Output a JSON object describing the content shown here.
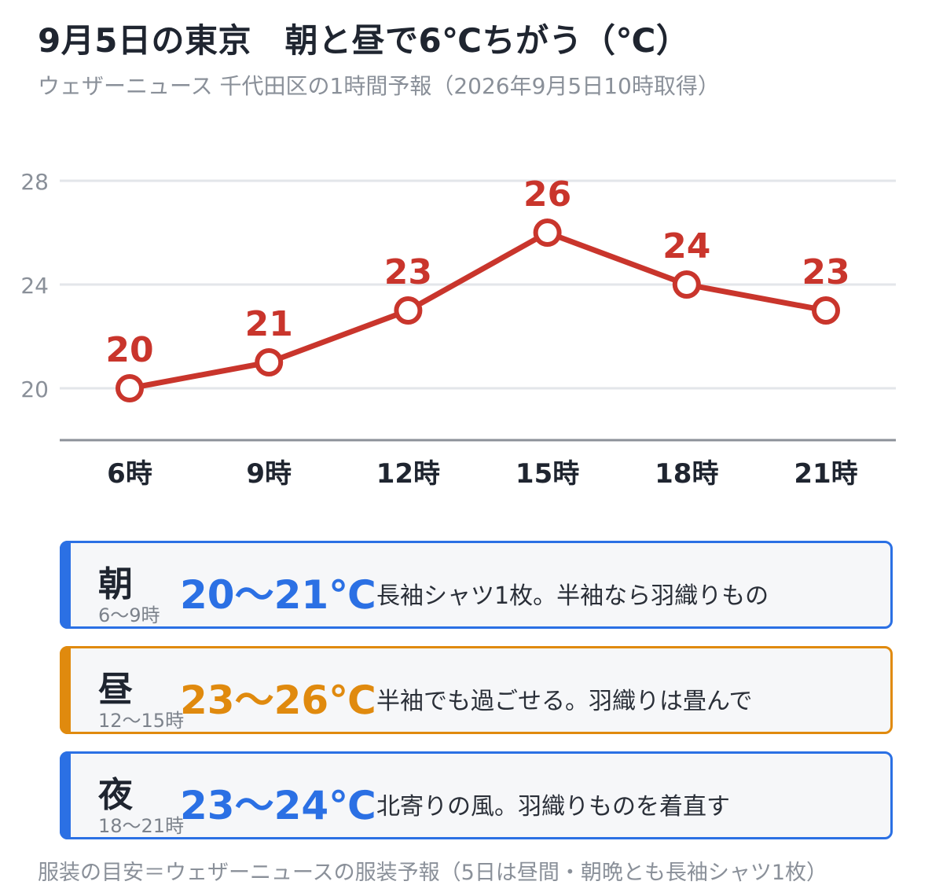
{
  "title": "9月5日の東京　朝と昼で6℃ちがう（℃）",
  "subtitle": "ウェザーニュース 千代田区の1時間予報（2026年9月5日10時取得）",
  "colors": {
    "line": "#c9352c",
    "axis": "#8c9199",
    "grid": "#e3e6ea",
    "morning": "#2b70e4",
    "noon": "#e08a0e",
    "night": "#2b70e4"
  },
  "chart_data": {
    "type": "line",
    "title": "9月5日の東京　朝と昼で6℃ちがう（℃）",
    "categories": [
      "6時",
      "9時",
      "12時",
      "15時",
      "18時",
      "21時"
    ],
    "series": [
      {
        "values": [
          20,
          21,
          23,
          26,
          24,
          23
        ]
      }
    ],
    "data_labels": [
      "20",
      "21",
      "23",
      "26",
      "24",
      "23"
    ],
    "yticks": [
      20,
      24,
      28
    ],
    "ylim": [
      18,
      28
    ],
    "grid": true,
    "legend": "none",
    "xlabel": "",
    "ylabel": ""
  },
  "cards": [
    {
      "id": "morning",
      "label": "朝",
      "hours": "6〜9時",
      "range": "20〜21℃",
      "advice": "長袖シャツ1枚。半袖なら羽織りもの",
      "color": "#2b70e4"
    },
    {
      "id": "noon",
      "label": "昼",
      "hours": "12〜15時",
      "range": "23〜26℃",
      "advice": "半袖でも過ごせる。羽織りは畳んで",
      "color": "#e08a0e"
    },
    {
      "id": "night",
      "label": "夜",
      "hours": "18〜21時",
      "range": "23〜24℃",
      "advice": "北寄りの風。羽織りものを着直す",
      "color": "#2b70e4"
    }
  ],
  "footnote": "服装の目安＝ウェザーニュースの服装予報（5日は昼間・朝晩とも長袖シャツ1枚）"
}
